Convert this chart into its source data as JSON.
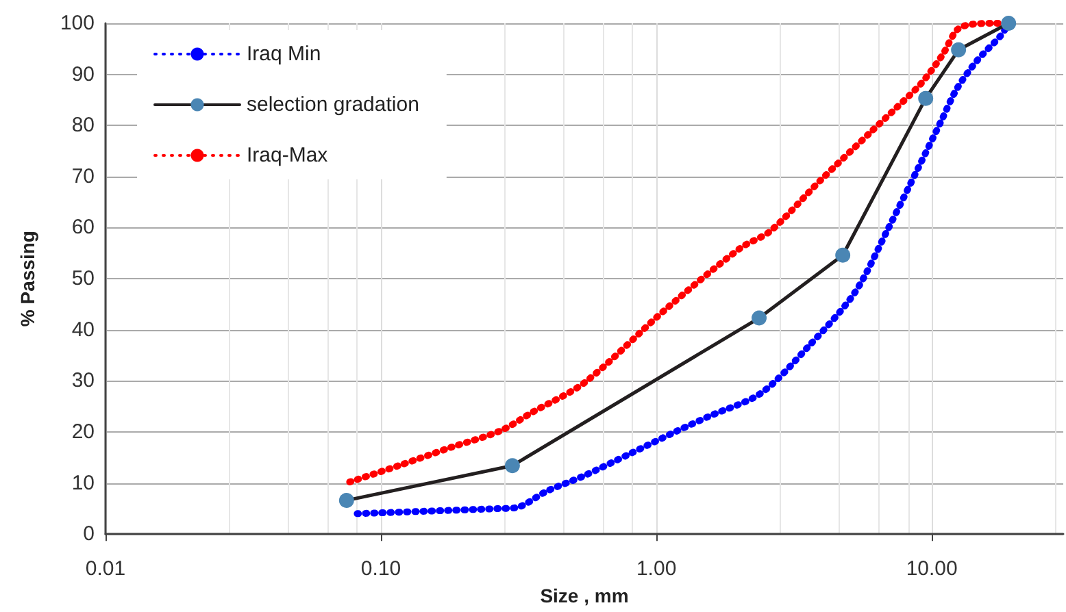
{
  "chart_data": {
    "type": "line",
    "xlabel": "Size , mm",
    "ylabel": "% Passing",
    "log": "x",
    "xlim": [
      0.01,
      30
    ],
    "xticks": [
      {
        "value": 0.01,
        "label": "0.01"
      },
      {
        "value": 0.1,
        "label": "0.10"
      },
      {
        "value": 1,
        "label": "1.00"
      },
      {
        "value": 10,
        "label": "10.00"
      }
    ],
    "ylim": [
      0,
      100
    ],
    "yticks": [
      0,
      10,
      20,
      30,
      40,
      50,
      60,
      70,
      80,
      90,
      100
    ],
    "grid": true,
    "legend": "top left",
    "series": [
      {
        "name": "Iraq Min",
        "color": "#0000ff",
        "line_style": "dotted",
        "marker": "none",
        "x": [
          0.082,
          0.149,
          0.268,
          0.311,
          0.4,
          0.54,
          0.8,
          1.19,
          1.56,
          2.4,
          3.56,
          5.24,
          6.87,
          8.93,
          10.8,
          12.3,
          14.6,
          17.8,
          19
        ],
        "values": [
          4,
          4.5,
          5,
          5.2,
          8.4,
          11.3,
          15.7,
          20.2,
          23.1,
          27.6,
          36.7,
          47.2,
          59.3,
          71.7,
          80.8,
          87.1,
          92.7,
          97.6,
          100
        ]
      },
      {
        "name": "selection gradation",
        "color": "#4a86b4",
        "line_style": "solid",
        "marker": "circle",
        "x": [
          0.075,
          0.3,
          2.36,
          4.75,
          9.5,
          12.5,
          19
        ],
        "values": [
          6.6,
          13.4,
          42.3,
          54.6,
          85.3,
          94.8,
          100
        ]
      },
      {
        "name": "Iraq-Max",
        "color": "#ff0000",
        "line_style": "dotted",
        "marker": "none",
        "x": [
          0.077,
          0.119,
          0.18,
          0.271,
          0.356,
          0.55,
          1.08,
          2.02,
          2.59,
          3.9,
          6,
          7.45,
          9.14,
          10.9,
          12.7,
          17,
          19
        ],
        "values": [
          10.2,
          13.6,
          17,
          20.2,
          23.9,
          29.7,
          44,
          56,
          59.3,
          69,
          78.7,
          83.5,
          88.2,
          93.7,
          99.2,
          100,
          100
        ]
      }
    ]
  }
}
